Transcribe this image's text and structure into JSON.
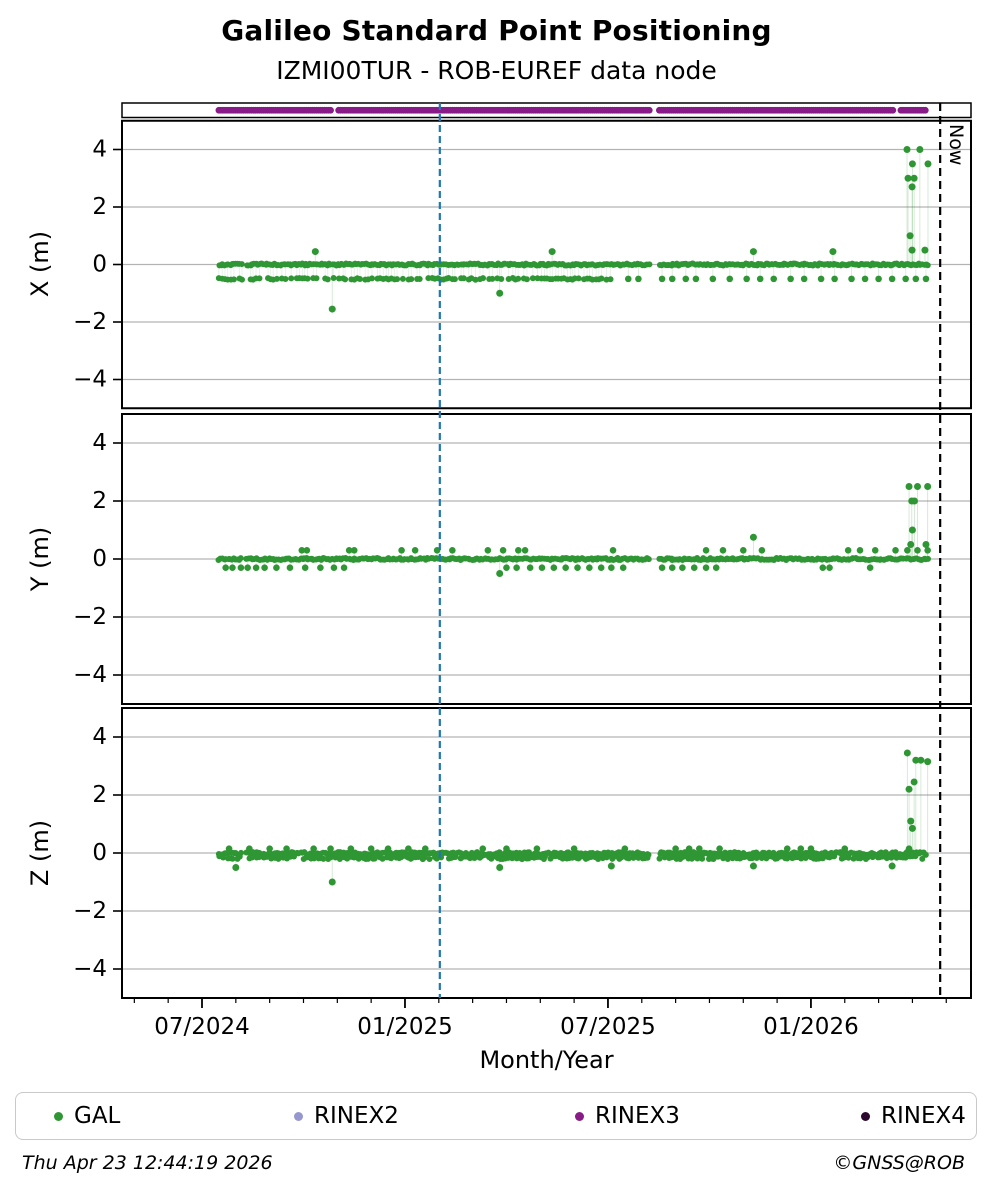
{
  "colors": {
    "gal": "#2f9634",
    "rinex2": "#9697ce",
    "rinex3": "#891b89",
    "rinex4": "#2d082f",
    "grid": "#b3b3b3",
    "frame": "#000000",
    "marker_line": "#1f77b4",
    "now_line": "#000000"
  },
  "legend": [
    {
      "label": "GAL",
      "color": "#2f9634"
    },
    {
      "label": "RINEX2",
      "color": "#9697ce"
    },
    {
      "label": "RINEX3",
      "color": "#891b89"
    },
    {
      "label": "RINEX4",
      "color": "#2d082f"
    }
  ],
  "footer": {
    "timestamp": "Thu Apr 23 12:44:19 2026",
    "credit": "©GNSS@ROB"
  },
  "chart_data": {
    "type": "scatter",
    "title": "Galileo Standard Point Positioning",
    "subtitle": "IZMI00TUR - ROB-EUREF data node",
    "xlabel": "Month/Year",
    "x_major_ticks": [
      {
        "m": 0,
        "label": "07/2024"
      },
      {
        "m": 6,
        "label": "01/2025"
      },
      {
        "m": 12,
        "label": "07/2025"
      },
      {
        "m": 18,
        "label": "01/2026"
      }
    ],
    "x_minor_step_months": 1,
    "x_range_months": [
      -2.37,
      22.73
    ],
    "ylim": [
      -5,
      5
    ],
    "ytick_values": [
      4,
      2,
      0,
      -2,
      -4
    ],
    "ytick_labels": [
      "4",
      "2",
      "0",
      "−2",
      "−4"
    ],
    "series": "GAL",
    "panels": [
      {
        "id": "x",
        "name": "X (m)",
        "bands": [
          {
            "y": 0,
            "from": 0.5,
            "to": 21.5,
            "step": 0.055,
            "density": 1,
            "jitter": 0.035,
            "gaps": [
              [
                1.18,
                1.32
              ],
              [
                13.24,
                13.5
              ]
            ]
          },
          {
            "y": -0.5,
            "from": 0.5,
            "to": 12.1,
            "step": 0.085,
            "density": 0.75,
            "jitter": 0.03,
            "stems": true,
            "gaps": [
              [
                1.18,
                1.32
              ]
            ]
          }
        ],
        "points": [
          [
            12.6,
            -0.5
          ],
          [
            12.9,
            -0.5
          ],
          [
            13.6,
            -0.5
          ],
          [
            13.9,
            -0.5
          ],
          [
            14.3,
            -0.5
          ],
          [
            14.6,
            -0.5
          ],
          [
            15.1,
            -0.5
          ],
          [
            15.6,
            -0.5
          ],
          [
            16.1,
            -0.5
          ],
          [
            16.5,
            -0.5
          ],
          [
            16.9,
            -0.5
          ],
          [
            17.4,
            -0.5
          ],
          [
            17.8,
            -0.5
          ],
          [
            18.3,
            -0.5
          ],
          [
            18.7,
            -0.5
          ],
          [
            19.2,
            -0.5
          ],
          [
            19.6,
            -0.5
          ],
          [
            20.0,
            -0.5
          ],
          [
            20.4,
            -0.5
          ],
          [
            20.8,
            -0.5
          ],
          [
            21.1,
            -0.5
          ],
          [
            21.4,
            -0.5
          ]
        ],
        "outliers": [
          [
            3.35,
            0.45
          ],
          [
            3.85,
            -1.55
          ],
          [
            8.8,
            -1.0
          ],
          [
            10.35,
            0.45
          ],
          [
            16.3,
            0.45
          ],
          [
            18.65,
            0.45
          ],
          [
            20.84,
            4.0
          ],
          [
            21.22,
            4.0
          ],
          [
            21.0,
            3.5
          ],
          [
            21.46,
            3.5
          ],
          [
            20.87,
            3.0
          ],
          [
            21.05,
            3.0
          ],
          [
            20.99,
            2.7
          ],
          [
            20.93,
            1.0
          ],
          [
            20.99,
            0.5
          ],
          [
            21.37,
            0.5
          ]
        ]
      },
      {
        "id": "y",
        "name": "Y (m)",
        "bands": [
          {
            "y": 0,
            "from": 0.5,
            "to": 21.5,
            "step": 0.055,
            "density": 1,
            "jitter": 0.035,
            "gaps": [
              [
                1.18,
                1.32
              ],
              [
                13.24,
                13.5
              ]
            ]
          }
        ],
        "points": [
          [
            2.95,
            0.3
          ],
          [
            3.1,
            0.3
          ],
          [
            4.35,
            0.3
          ],
          [
            4.5,
            0.3
          ],
          [
            5.9,
            0.3
          ],
          [
            6.3,
            0.3
          ],
          [
            6.95,
            0.3
          ],
          [
            7.4,
            0.3
          ],
          [
            8.45,
            0.3
          ],
          [
            8.9,
            0.3
          ],
          [
            9.35,
            0.3
          ],
          [
            9.55,
            0.3
          ],
          [
            12.15,
            0.3
          ],
          [
            14.9,
            0.3
          ],
          [
            15.4,
            0.3
          ],
          [
            16.0,
            0.3
          ],
          [
            16.55,
            0.3
          ],
          [
            19.1,
            0.3
          ],
          [
            19.45,
            0.3
          ],
          [
            19.9,
            0.3
          ],
          [
            20.5,
            0.3
          ],
          [
            20.85,
            0.3
          ],
          [
            21.15,
            0.3
          ],
          [
            21.45,
            0.3
          ],
          [
            0.7,
            -0.3
          ],
          [
            0.9,
            -0.3
          ],
          [
            1.15,
            -0.3
          ],
          [
            1.35,
            -0.3
          ],
          [
            1.6,
            -0.3
          ],
          [
            1.85,
            -0.3
          ],
          [
            2.2,
            -0.3
          ],
          [
            2.6,
            -0.3
          ],
          [
            3.05,
            -0.3
          ],
          [
            3.5,
            -0.3
          ],
          [
            3.9,
            -0.3
          ],
          [
            4.2,
            -0.3
          ],
          [
            9.0,
            -0.3
          ],
          [
            9.3,
            -0.3
          ],
          [
            9.7,
            -0.3
          ],
          [
            10.05,
            -0.3
          ],
          [
            10.4,
            -0.3
          ],
          [
            10.75,
            -0.3
          ],
          [
            11.1,
            -0.3
          ],
          [
            11.45,
            -0.3
          ],
          [
            11.8,
            -0.3
          ],
          [
            12.1,
            -0.3
          ],
          [
            12.45,
            -0.3
          ],
          [
            13.6,
            -0.3
          ],
          [
            13.9,
            -0.3
          ],
          [
            14.2,
            -0.3
          ],
          [
            14.55,
            -0.3
          ],
          [
            14.9,
            -0.3
          ],
          [
            15.2,
            -0.3
          ],
          [
            18.35,
            -0.3
          ],
          [
            18.55,
            -0.3
          ],
          [
            19.75,
            -0.3
          ]
        ],
        "outliers": [
          [
            8.8,
            -0.5
          ],
          [
            16.3,
            0.75
          ],
          [
            20.9,
            2.5
          ],
          [
            21.15,
            2.5
          ],
          [
            21.45,
            2.5
          ],
          [
            20.98,
            2.0
          ],
          [
            21.06,
            2.0
          ],
          [
            21.0,
            1.0
          ],
          [
            20.95,
            0.5
          ],
          [
            21.4,
            0.5
          ]
        ]
      },
      {
        "id": "z",
        "name": "Z (m)",
        "bands": [
          {
            "y": -0.02,
            "from": 0.5,
            "to": 21.45,
            "step": 0.055,
            "density": 1,
            "jitter": 0.05,
            "gaps": [
              [
                1.18,
                1.32
              ],
              [
                13.24,
                13.5
              ]
            ]
          },
          {
            "y": -0.16,
            "from": 0.5,
            "to": 21.3,
            "step": 0.07,
            "density": 0.8,
            "jitter": 0.05,
            "gaps": [
              [
                1.18,
                1.32
              ],
              [
                13.24,
                13.5
              ]
            ]
          }
        ],
        "points": [
          [
            0.8,
            0.15
          ],
          [
            1.4,
            0.15
          ],
          [
            2.0,
            0.15
          ],
          [
            2.5,
            0.15
          ],
          [
            3.3,
            0.15
          ],
          [
            3.8,
            0.15
          ],
          [
            4.4,
            0.15
          ],
          [
            5.0,
            0.15
          ],
          [
            5.5,
            0.15
          ],
          [
            6.1,
            0.15
          ],
          [
            6.6,
            0.15
          ],
          [
            8.3,
            0.15
          ],
          [
            9.0,
            0.15
          ],
          [
            9.9,
            0.15
          ],
          [
            11.0,
            0.15
          ],
          [
            12.5,
            0.15
          ],
          [
            14.0,
            0.15
          ],
          [
            14.4,
            0.15
          ],
          [
            14.7,
            0.15
          ],
          [
            15.3,
            0.15
          ],
          [
            17.3,
            0.15
          ],
          [
            17.7,
            0.15
          ],
          [
            18.0,
            0.15
          ],
          [
            19.0,
            0.15
          ],
          [
            20.9,
            0.15
          ]
        ],
        "outliers": [
          [
            1.0,
            -0.5
          ],
          [
            3.85,
            -1.0
          ],
          [
            8.8,
            -0.5
          ],
          [
            12.1,
            -0.45
          ],
          [
            16.3,
            -0.45
          ],
          [
            20.4,
            -0.45
          ],
          [
            20.85,
            3.45
          ],
          [
            21.1,
            3.2
          ],
          [
            21.25,
            3.2
          ],
          [
            21.45,
            3.15
          ],
          [
            21.05,
            2.45
          ],
          [
            20.9,
            2.2
          ],
          [
            20.95,
            1.1
          ],
          [
            21.0,
            0.85
          ]
        ]
      }
    ],
    "availability_strip": {
      "series": "RINEX3",
      "from": 0.5,
      "to": 21.4,
      "step": 0.06,
      "gaps": [
        [
          3.84,
          4.0
        ],
        [
          13.24,
          13.5
        ],
        [
          20.45,
          20.62
        ]
      ]
    },
    "event_lines": [
      {
        "name": "data-marker-line",
        "label": "",
        "m": 7.03,
        "color": "#1f77b4",
        "dash": [
          7,
          4
        ]
      },
      {
        "name": "now-line",
        "label": "Now",
        "m": 21.82,
        "color": "#000000",
        "dash": [
          8,
          5
        ]
      }
    ]
  }
}
